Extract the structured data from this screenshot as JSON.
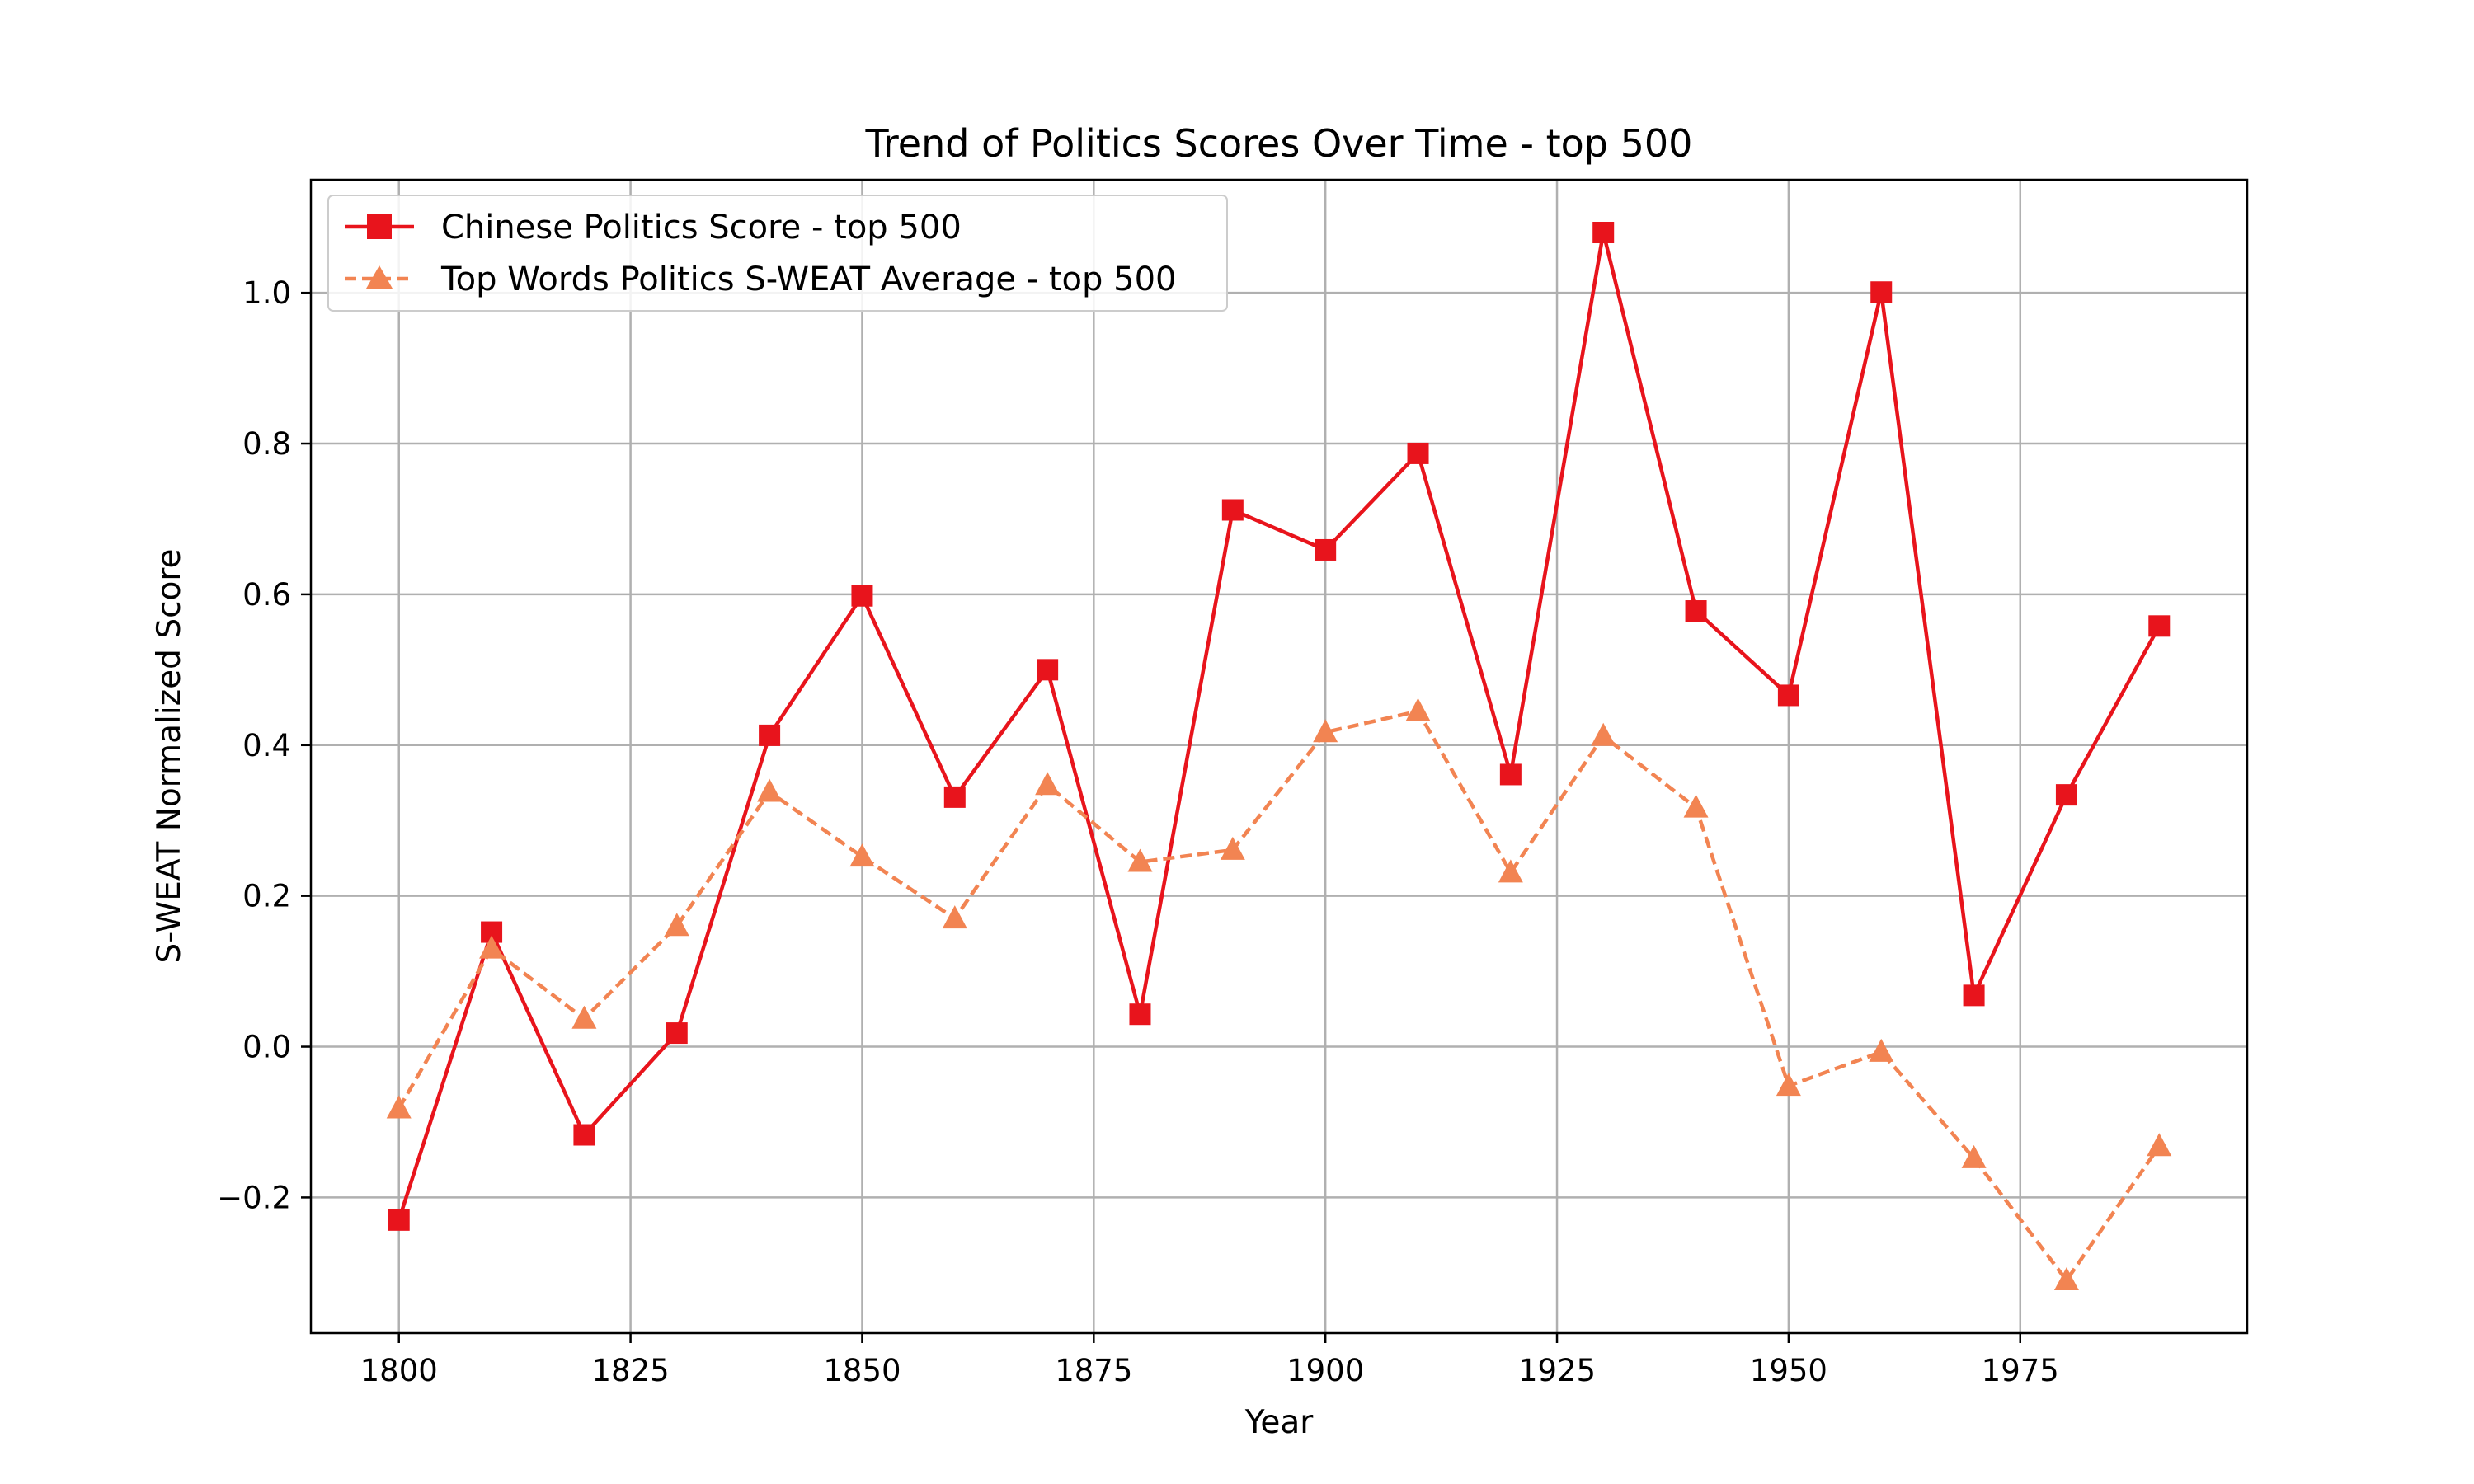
{
  "chart_data": {
    "type": "line",
    "title": "Trend of Politics Scores Over Time - top 500",
    "xlabel": "Year",
    "ylabel": "S-WEAT Normalized Score",
    "x": [
      1800,
      1810,
      1820,
      1830,
      1840,
      1850,
      1860,
      1870,
      1880,
      1890,
      1900,
      1910,
      1920,
      1930,
      1940,
      1950,
      1960,
      1970,
      1980,
      1990
    ],
    "xlim": [
      1790.5,
      1999.5
    ],
    "ylim": [
      -0.38,
      1.15
    ],
    "xticks": [
      "1800",
      "1825",
      "1850",
      "1875",
      "1900",
      "1925",
      "1950",
      "1975"
    ],
    "xtick_values": [
      1800,
      1825,
      1850,
      1875,
      1900,
      1925,
      1950,
      1975
    ],
    "yticks": [
      "−0.2",
      "0.0",
      "0.2",
      "0.4",
      "0.6",
      "0.8",
      "1.0"
    ],
    "ytick_values": [
      -0.2,
      0.0,
      0.2,
      0.4,
      0.6,
      0.8,
      1.0
    ],
    "grid": true,
    "legend_position": "top-left",
    "series": [
      {
        "name": "Chinese Politics Score - top 500",
        "color": "#e8141c",
        "marker": "square",
        "linestyle": "solid",
        "values": [
          -0.23,
          0.152,
          -0.117,
          0.018,
          0.413,
          0.598,
          0.331,
          0.5,
          0.043,
          0.712,
          0.659,
          0.787,
          0.361,
          1.08,
          0.578,
          0.466,
          1.001,
          0.068,
          0.334,
          0.558
        ]
      },
      {
        "name": "Top Words Politics S-WEAT Average - top 500",
        "color": "#f28452",
        "marker": "triangle",
        "linestyle": "dashed",
        "values": [
          -0.082,
          0.13,
          0.037,
          0.16,
          0.338,
          0.252,
          0.17,
          0.347,
          0.245,
          0.261,
          0.417,
          0.445,
          0.231,
          0.412,
          0.317,
          -0.052,
          -0.007,
          -0.148,
          -0.31,
          -0.132
        ]
      }
    ]
  }
}
